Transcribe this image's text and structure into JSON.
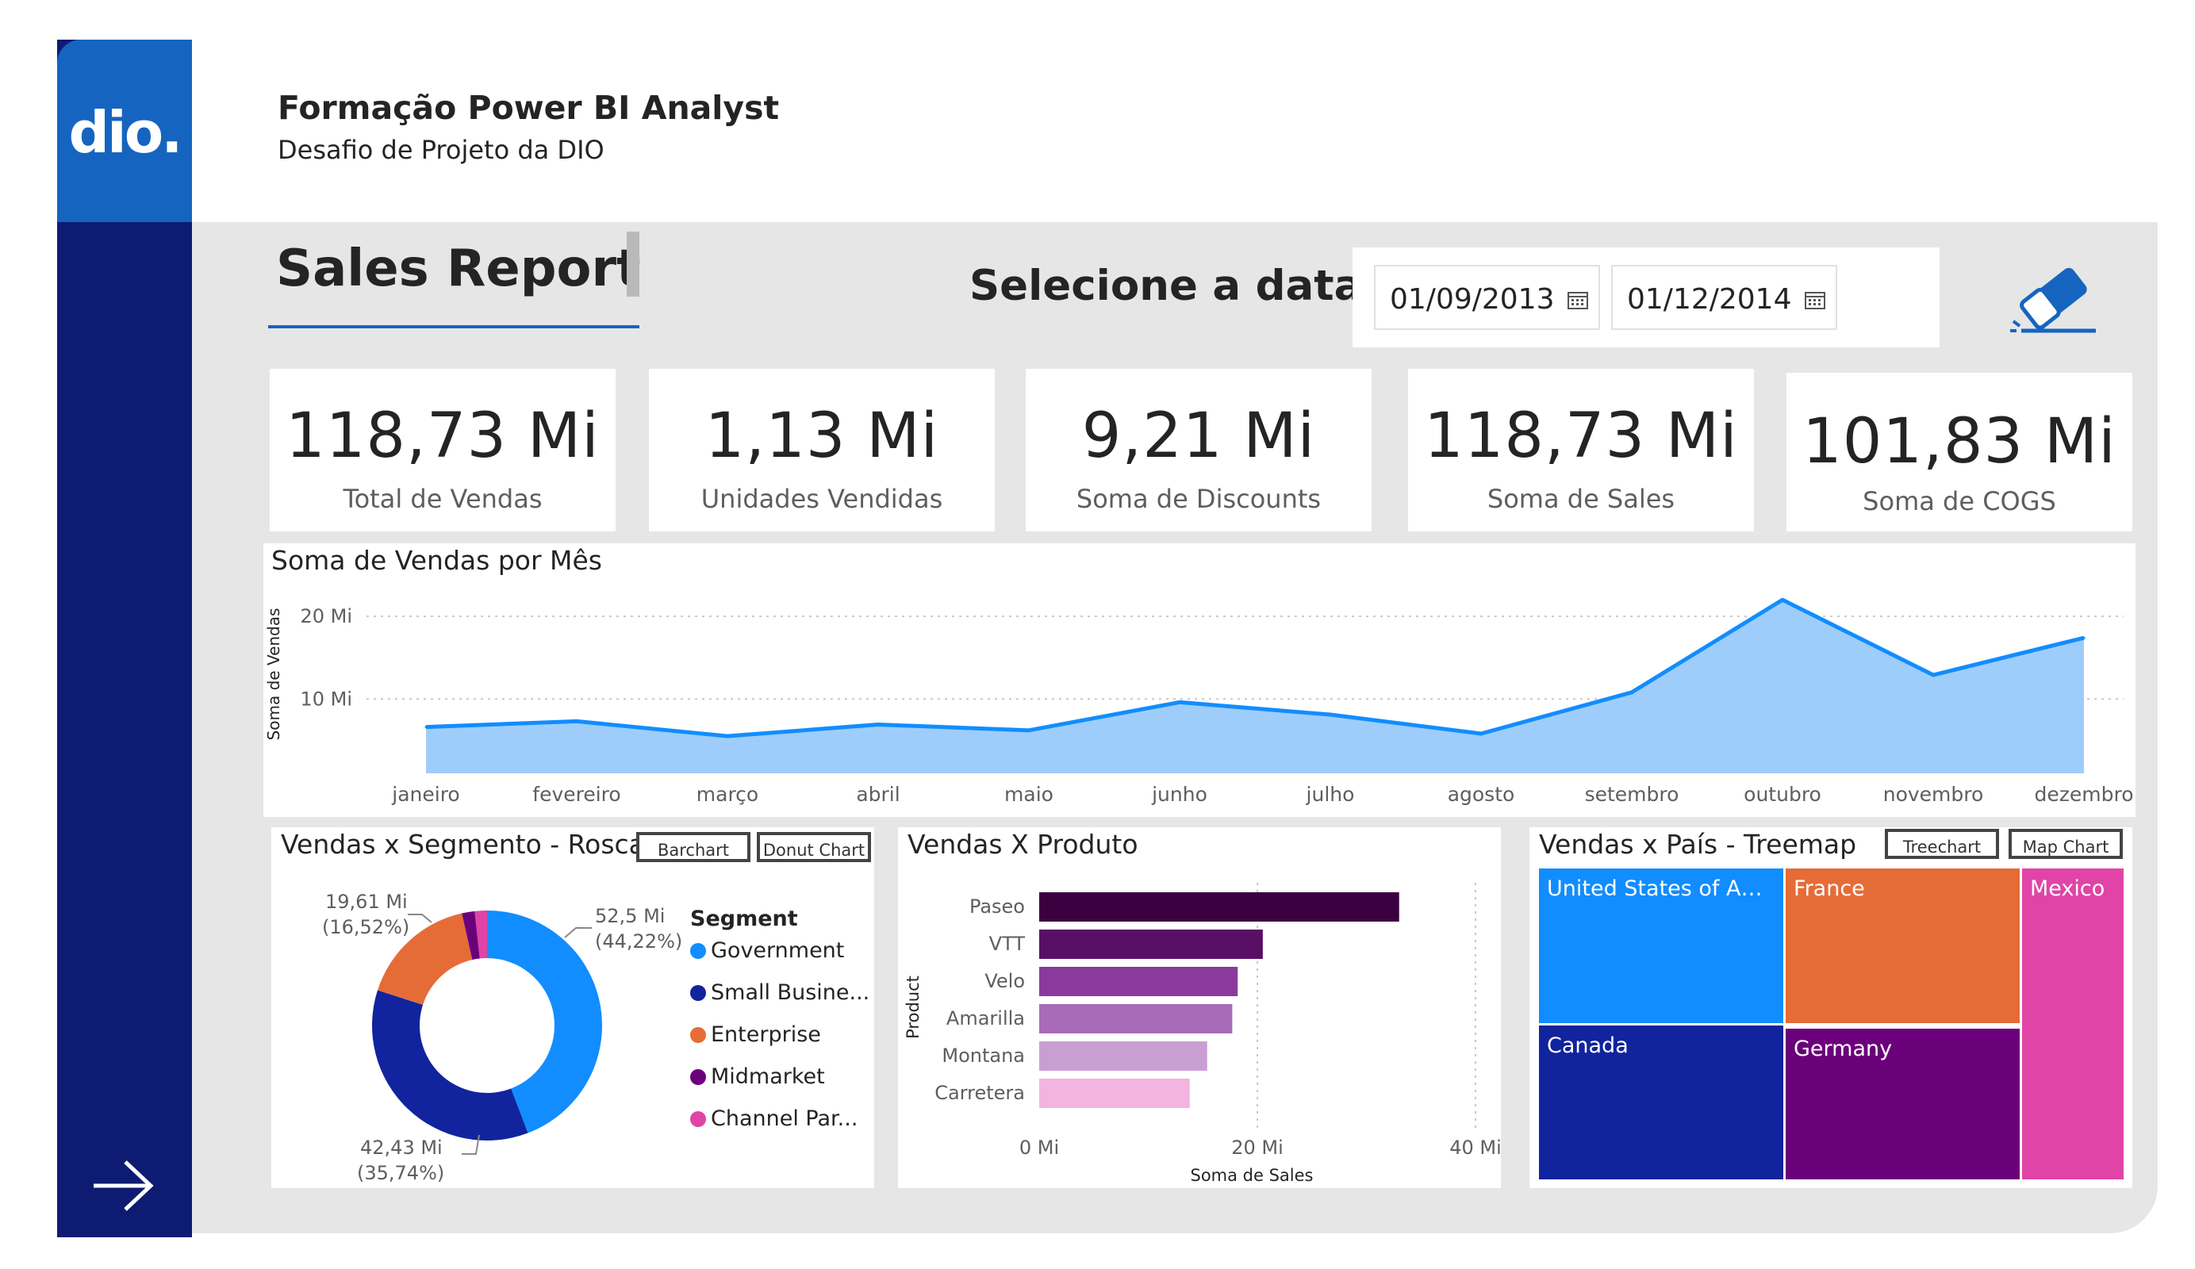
{
  "header": {
    "logo_text": "dio.",
    "title": "Formação Power BI Analyst",
    "subtitle": "Desafio de Projeto da DIO"
  },
  "report": {
    "title": "Sales Report",
    "date_prompt": "Selecione a data:",
    "date_start": "01/09/2013",
    "date_end": "01/12/2014",
    "clear_icon": "eraser-icon",
    "nav_icon": "arrow-right-icon"
  },
  "kpis": [
    {
      "value": "118,73 Mi",
      "label": "Total de Vendas"
    },
    {
      "value": "1,13 Mi",
      "label": "Unidades Vendidas"
    },
    {
      "value": "9,21 Mi",
      "label": "Soma de Discounts"
    },
    {
      "value": "118,73 Mi",
      "label": "Soma de  Sales"
    },
    {
      "value": "101,83 Mi",
      "label": "Soma de COGS"
    }
  ],
  "colors": {
    "sidebar": "#0d1b73",
    "logo_bg": "#1565c0",
    "canvas": "#e6e6e6",
    "accent": "#118dff",
    "area_fill": "#9fcdfb"
  },
  "line_chart": {
    "title": "Soma de Vendas por Mês",
    "chart_data": {
      "type": "area",
      "title": "Soma de Vendas por Mês",
      "ylabel": "Soma de Vendas",
      "xlabel": "",
      "categories": [
        "janeiro",
        "fevereiro",
        "março",
        "abril",
        "maio",
        "junho",
        "julho",
        "agosto",
        "setembro",
        "outubro",
        "novembro",
        "dezembro"
      ],
      "values": [
        6.6,
        7.3,
        5.5,
        6.9,
        6.2,
        9.6,
        8.1,
        5.8,
        10.8,
        22.0,
        12.9,
        17.4
      ],
      "yticks": [
        "10 Mi",
        "20 Mi"
      ],
      "ylim": [
        1,
        25
      ],
      "grid": true
    }
  },
  "donut_chart": {
    "title": "Vendas x Segmento - Rosca",
    "btn_bar": "Barchart",
    "btn_donut": "Donut Chart",
    "legend_title": "Segment",
    "chart_data": {
      "type": "pie",
      "categories": [
        "Government",
        "Small Busine...",
        "Enterprise",
        "Midmarket",
        "Channel Par..."
      ],
      "values": [
        44.22,
        35.74,
        16.52,
        1.8,
        1.72
      ],
      "colors": [
        "#118dff",
        "#12239e",
        "#e66c37",
        "#6b007b",
        "#e044a7"
      ]
    },
    "labels": {
      "gov_value": "52,5 Mi",
      "gov_pct": "(44,22%)",
      "sb_value": "42,43 Mi",
      "sb_pct": "(35,74%)",
      "ent_value": "19,61 Mi",
      "ent_pct": "(16,52%)"
    }
  },
  "bar_chart": {
    "title": "Vendas X Produto",
    "chart_data": {
      "type": "bar",
      "orientation": "horizontal",
      "categories": [
        "Paseo",
        "VTT",
        "Velo",
        "Amarilla",
        "Montana",
        "Carretera"
      ],
      "values": [
        33.0,
        20.5,
        18.2,
        17.7,
        15.4,
        13.8
      ],
      "colors": [
        "#3b0040",
        "#5a0f66",
        "#8a3a9c",
        "#a86bb8",
        "#c99fd3",
        "#f1b5df"
      ],
      "xlabel": "Soma de Sales",
      "ylabel": "Product",
      "xticks": [
        "0 Mi",
        "20 Mi",
        "40 Mi"
      ],
      "xlim": [
        0,
        40
      ]
    }
  },
  "treemap": {
    "title": "Vendas x País - Treemap",
    "btn_tree": "Treechart",
    "btn_map": "Map Chart",
    "chart_data": {
      "type": "treemap",
      "categories": [
        "United States of Amer...",
        "France",
        "Mexico",
        "Canada",
        "Germany"
      ],
      "colors": [
        "#118dff",
        "#e66c37",
        "#e044a7",
        "#12239e",
        "#6b007b"
      ]
    }
  }
}
